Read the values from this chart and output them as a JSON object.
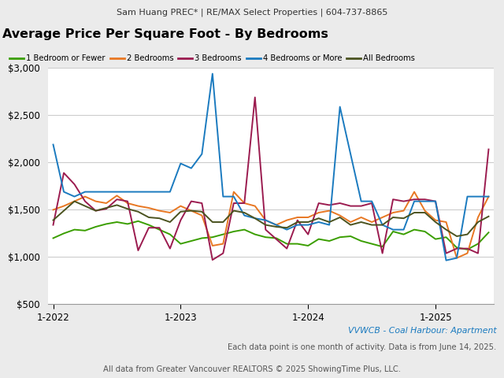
{
  "title": "Average Price Per Square Foot - By Bedrooms",
  "header": "Sam Huang PREC* | RE/MAX Select Properties | 604-737-8865",
  "footer1": "VVWCB - Coal Harbour: Apartment",
  "footer2": "Each data point is one month of activity. Data is from June 14, 2025.",
  "footer3": "All data from Greater Vancouver REALTORS © 2025 ShowingTime Plus, LLC.",
  "legend": [
    "1 Bedroom or Fewer",
    "2 Bedrooms",
    "3 Bedrooms",
    "4 Bedrooms or More",
    "All Bedrooms"
  ],
  "colors": [
    "#3a9e00",
    "#e87722",
    "#9b1b4f",
    "#1a7abf",
    "#4b5320"
  ],
  "ylim": [
    500,
    3000
  ],
  "yticks": [
    500,
    1000,
    1500,
    2000,
    2500,
    3000
  ],
  "xtick_positions": [
    0,
    12,
    24,
    36
  ],
  "xlabel_ticks": [
    "1-2022",
    "1-2023",
    "1-2024",
    "1-2025"
  ],
  "series": {
    "1bed": [
      1200,
      1250,
      1290,
      1280,
      1320,
      1350,
      1370,
      1350,
      1380,
      1340,
      1290,
      1240,
      1140,
      1170,
      1200,
      1210,
      1240,
      1270,
      1290,
      1240,
      1210,
      1200,
      1140,
      1140,
      1120,
      1190,
      1170,
      1210,
      1220,
      1170,
      1140,
      1110,
      1270,
      1240,
      1290,
      1270,
      1190,
      1210,
      1100,
      1080,
      1140,
      1260
    ],
    "2bed": [
      1500,
      1540,
      1590,
      1640,
      1590,
      1570,
      1650,
      1570,
      1540,
      1520,
      1490,
      1470,
      1540,
      1490,
      1440,
      1120,
      1140,
      1690,
      1570,
      1540,
      1390,
      1340,
      1390,
      1420,
      1420,
      1470,
      1490,
      1440,
      1370,
      1420,
      1370,
      1420,
      1470,
      1490,
      1690,
      1490,
      1390,
      1370,
      990,
      1040,
      1420,
      1640
    ],
    "3bed": [
      1340,
      1890,
      1770,
      1590,
      1490,
      1510,
      1610,
      1590,
      1070,
      1310,
      1310,
      1090,
      1390,
      1590,
      1570,
      970,
      1040,
      1570,
      1570,
      2690,
      1290,
      1190,
      1090,
      1390,
      1240,
      1570,
      1550,
      1570,
      1540,
      1540,
      1570,
      1040,
      1610,
      1590,
      1610,
      1610,
      1590,
      1040,
      1090,
      1090,
      1040,
      2140
    ],
    "4bed": [
      2190,
      1690,
      1640,
      1690,
      1690,
      1690,
      1690,
      1690,
      1690,
      1690,
      1690,
      1690,
      1990,
      1940,
      2090,
      2940,
      1640,
      1640,
      1440,
      1410,
      1390,
      1340,
      1290,
      1340,
      1340,
      1370,
      1340,
      2590,
      2090,
      1590,
      1590,
      1340,
      1290,
      1290,
      1590,
      1590,
      1590,
      965,
      990,
      1640,
      1640,
      1640
    ],
    "allbed": [
      1390,
      1490,
      1590,
      1540,
      1490,
      1520,
      1550,
      1510,
      1480,
      1420,
      1410,
      1370,
      1480,
      1490,
      1480,
      1370,
      1370,
      1490,
      1470,
      1410,
      1340,
      1320,
      1310,
      1370,
      1370,
      1410,
      1370,
      1420,
      1340,
      1370,
      1340,
      1340,
      1420,
      1410,
      1470,
      1470,
      1370,
      1290,
      1220,
      1240,
      1370,
      1430
    ]
  }
}
